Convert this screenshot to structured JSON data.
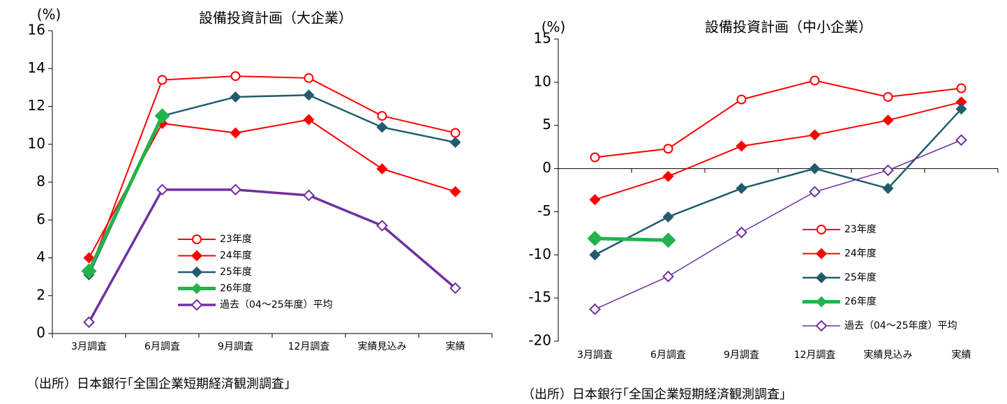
{
  "chart_data": [
    {
      "type": "line",
      "title": "設備投資計画（大企業）",
      "ylabel": "(%)",
      "categories": [
        "3月調査",
        "6月調査",
        "9月調査",
        "12月調査",
        "実績見込み",
        "実績"
      ],
      "ylim": [
        0,
        16
      ],
      "yticks": [
        0,
        2,
        4,
        6,
        8,
        10,
        12,
        14,
        16
      ],
      "series": [
        {
          "name": "23年度",
          "color": "#ff0000",
          "marker": "open-circle",
          "line_width": 2,
          "values": [
            3.2,
            13.4,
            13.6,
            13.5,
            11.5,
            10.6
          ]
        },
        {
          "name": "24年度",
          "color": "#ff0000",
          "marker": "diamond",
          "line_width": 2,
          "values": [
            4.0,
            11.1,
            10.6,
            11.3,
            8.7,
            7.5
          ]
        },
        {
          "name": "25年度",
          "color": "#1f5c6e",
          "marker": "diamond",
          "line_width": 2.5,
          "values": [
            3.1,
            11.5,
            12.5,
            12.6,
            10.9,
            10.1
          ]
        },
        {
          "name": "26年度",
          "color": "#22b34c",
          "marker": "big-diamond",
          "line_width": 5,
          "values": [
            3.3,
            11.5,
            null,
            null,
            null,
            null
          ]
        },
        {
          "name": "過去（04～25年度）平均",
          "color": "#7030a0",
          "marker": "open-diamond",
          "line_width": 3.5,
          "values": [
            0.6,
            7.6,
            7.6,
            7.3,
            5.7,
            2.4
          ]
        }
      ],
      "source": "（出所）日本銀行｢全国企業短期経済観測調査｣"
    },
    {
      "type": "line",
      "title": "設備投資計画（中小企業）",
      "ylabel": "(%)",
      "categories": [
        "3月調査",
        "6月調査",
        "9月調査",
        "12月調査",
        "実績見込み",
        "実績"
      ],
      "ylim": [
        -20,
        15
      ],
      "yticks": [
        -20,
        -15,
        -10,
        -5,
        0,
        5,
        10,
        15
      ],
      "series": [
        {
          "name": "23年度",
          "color": "#ff0000",
          "marker": "open-circle",
          "line_width": 2,
          "values": [
            1.3,
            2.3,
            8.0,
            10.2,
            8.3,
            9.3
          ]
        },
        {
          "name": "24年度",
          "color": "#ff0000",
          "marker": "diamond",
          "line_width": 2,
          "values": [
            -3.6,
            -0.9,
            2.6,
            3.9,
            5.6,
            7.7
          ]
        },
        {
          "name": "25年度",
          "color": "#1f5c6e",
          "marker": "diamond",
          "line_width": 2.5,
          "values": [
            -10.0,
            -5.6,
            -2.3,
            0.0,
            -2.3,
            6.9
          ]
        },
        {
          "name": "26年度",
          "color": "#22b34c",
          "marker": "big-diamond",
          "line_width": 5,
          "values": [
            -8.1,
            -8.3,
            null,
            null,
            null,
            null
          ]
        },
        {
          "name": "過去（04～25年度）平均",
          "color": "#7030a0",
          "marker": "open-diamond",
          "line_width": 1.5,
          "values": [
            -16.3,
            -12.5,
            -7.4,
            -2.7,
            -0.2,
            3.3
          ]
        }
      ],
      "source": "（出所）日本銀行｢全国企業短期経済観測調査｣"
    }
  ]
}
